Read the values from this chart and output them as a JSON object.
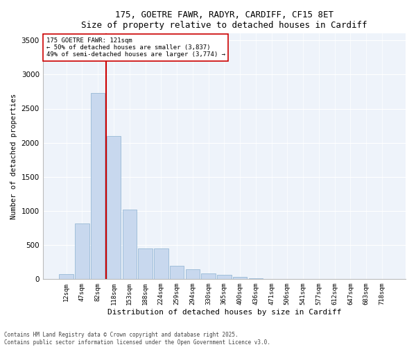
{
  "title1": "175, GOETRE FAWR, RADYR, CARDIFF, CF15 8ET",
  "title2": "Size of property relative to detached houses in Cardiff",
  "xlabel": "Distribution of detached houses by size in Cardiff",
  "ylabel": "Number of detached properties",
  "categories": [
    "12sqm",
    "47sqm",
    "82sqm",
    "118sqm",
    "153sqm",
    "188sqm",
    "224sqm",
    "259sqm",
    "294sqm",
    "330sqm",
    "365sqm",
    "400sqm",
    "436sqm",
    "471sqm",
    "506sqm",
    "541sqm",
    "577sqm",
    "612sqm",
    "647sqm",
    "683sqm",
    "718sqm"
  ],
  "values": [
    75,
    820,
    2730,
    2100,
    1020,
    450,
    450,
    200,
    150,
    80,
    60,
    30,
    15,
    8,
    4,
    2,
    1,
    1,
    0,
    0,
    0
  ],
  "bar_color": "#c8d8ee",
  "bar_edge_color": "#8ab0d0",
  "vline_color": "#cc0000",
  "annotation_text": "175 GOETRE FAWR: 121sqm\n← 50% of detached houses are smaller (3,837)\n49% of semi-detached houses are larger (3,774) →",
  "annotation_box_color": "#ffffff",
  "annotation_box_edge": "#cc0000",
  "ylim": [
    0,
    3600
  ],
  "yticks": [
    0,
    500,
    1000,
    1500,
    2000,
    2500,
    3000,
    3500
  ],
  "footer1": "Contains HM Land Registry data © Crown copyright and database right 2025.",
  "footer2": "Contains public sector information licensed under the Open Government Licence v3.0.",
  "bg_color": "#ffffff",
  "plot_bg_color": "#eef3fa",
  "grid_color": "#ffffff"
}
